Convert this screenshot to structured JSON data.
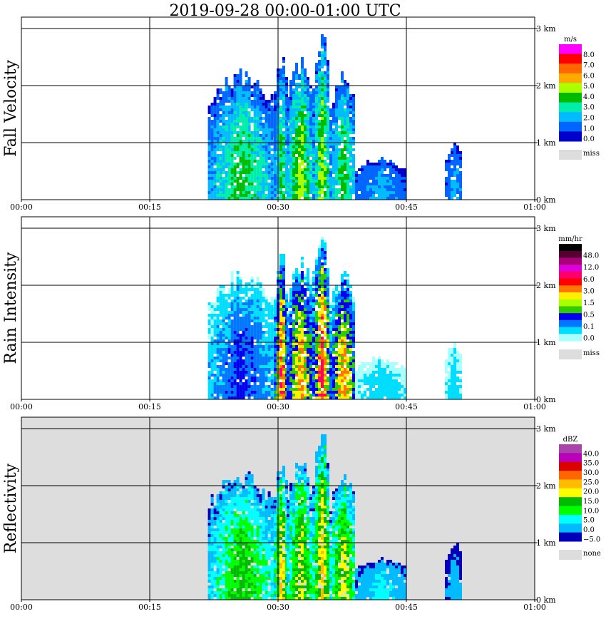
{
  "title": "2019-09-28   00:00-01:00 UTC",
  "x_ticks": [
    "00:00",
    "00:15",
    "00:30",
    "00:45",
    "01:00"
  ],
  "height_ticks": [
    "0 km",
    "1 km",
    "2 km",
    "3 km"
  ],
  "panels": [
    {
      "id": "fall-velocity",
      "ylabel": "Fall Velocity",
      "background": "#ffffff",
      "colorbar": {
        "unit": "m/s",
        "labels": [
          "8.0",
          "7.0",
          "6.0",
          "5.0",
          "4.0",
          "3.0",
          "2.0",
          "1.0",
          "0.0"
        ],
        "colors": [
          "#ff00ff",
          "#ff0000",
          "#ff6600",
          "#ffaa00",
          "#aaff00",
          "#00bb00",
          "#00eeaa",
          "#00bbff",
          "#0066ff",
          "#0000cc"
        ],
        "missing_label": "miss",
        "missing_color": "#dddddd"
      },
      "palette": [
        "#0000cc",
        "#0066ff",
        "#00bbff",
        "#00eeaa",
        "#00bb00",
        "#aaff00",
        "#ffaa00",
        "#ff00ff"
      ]
    },
    {
      "id": "rain-intensity",
      "ylabel": "Rain Intensity",
      "background": "#ffffff",
      "colorbar": {
        "unit": "mm/hr",
        "labels": [
          "48.0",
          "12.0",
          "6.0",
          "3.0",
          "1.5",
          "0.5",
          "0.1",
          "0.0"
        ],
        "colors": [
          "#000000",
          "#550033",
          "#aa0077",
          "#dd00dd",
          "#ff0066",
          "#ff0000",
          "#ff7700",
          "#ffee00",
          "#aaff00",
          "#33cc00",
          "#0000ee",
          "#0077ff",
          "#00ddff",
          "#aaffff"
        ],
        "missing_label": "miss",
        "missing_color": "#dddddd"
      },
      "palette": [
        "#aaffff",
        "#00ddff",
        "#0077ff",
        "#0000ee",
        "#33cc00",
        "#ffee00",
        "#ff7700",
        "#ff0066",
        "#ff0000"
      ]
    },
    {
      "id": "reflectivity",
      "ylabel": "Reflectivity",
      "background": "#dddddd",
      "colorbar": {
        "unit": "dBZ",
        "labels": [
          "40.0",
          "35.0",
          "30.0",
          "25.0",
          "20.0",
          "15.0",
          "10.0",
          "5.0",
          "0.0",
          "−5.0"
        ],
        "colors": [
          "#aa44aa",
          "#bb00bb",
          "#dd0000",
          "#ff6600",
          "#ffbb00",
          "#ffff00",
          "#00bb00",
          "#00ff00",
          "#00ffff",
          "#00bbff",
          "#0000bb"
        ],
        "missing_label": "none",
        "missing_color": "#dddddd"
      },
      "palette": [
        "#0000bb",
        "#00bbff",
        "#00ffff",
        "#00ff00",
        "#00bb00",
        "#ffff00",
        "#ffbb00",
        "#ff6600",
        "#dd0000"
      ]
    }
  ],
  "chart_data": [
    {
      "type": "heatmap",
      "title": "2019-09-28   00:00-01:00 UTC",
      "ylabel": "Fall Velocity",
      "unit": "m/s",
      "xlim": [
        "00:00",
        "01:00"
      ],
      "ylim_km": [
        0,
        3.2
      ],
      "x_ticks": [
        "00:00",
        "00:15",
        "00:30",
        "00:45",
        "01:00"
      ],
      "y_ticks": [
        "0 km",
        "1 km",
        "2 km",
        "3 km"
      ],
      "color_levels": [
        0.0,
        1.0,
        2.0,
        3.0,
        4.0,
        5.0,
        6.0,
        7.0,
        8.0
      ],
      "echo_columns": [
        {
          "start_min": 21.8,
          "end_min": 29.5,
          "top_km": 2.2,
          "max_value": 5.5
        },
        {
          "start_min": 29.5,
          "end_min": 31.0,
          "top_km": 2.5,
          "max_value": 5.0
        },
        {
          "start_min": 31.0,
          "end_min": 34.0,
          "top_km": 2.4,
          "max_value": 6.0
        },
        {
          "start_min": 34.0,
          "end_min": 36.0,
          "top_km": 2.85,
          "max_value": 6.0
        },
        {
          "start_min": 36.0,
          "end_min": 39.0,
          "top_km": 2.2,
          "max_value": 5.0
        },
        {
          "start_min": 39.0,
          "end_min": 44.8,
          "top_km": 0.7,
          "max_value": 2.0
        },
        {
          "start_min": 49.5,
          "end_min": 51.5,
          "top_km": 0.95,
          "max_value": 2.5
        }
      ]
    },
    {
      "type": "heatmap",
      "ylabel": "Rain Intensity",
      "unit": "mm/hr",
      "xlim": [
        "00:00",
        "01:00"
      ],
      "ylim_km": [
        0,
        3.2
      ],
      "x_ticks": [
        "00:00",
        "00:15",
        "00:30",
        "00:45",
        "01:00"
      ],
      "y_ticks": [
        "0 km",
        "1 km",
        "2 km",
        "3 km"
      ],
      "color_levels": [
        0.0,
        0.1,
        0.5,
        1.5,
        3.0,
        6.0,
        12.0,
        48.0
      ],
      "echo_columns": [
        {
          "start_min": 21.8,
          "end_min": 29.5,
          "top_km": 2.2,
          "max_value": 1.5
        },
        {
          "start_min": 29.5,
          "end_min": 31.0,
          "top_km": 2.5,
          "max_value": 12.0
        },
        {
          "start_min": 31.0,
          "end_min": 34.0,
          "top_km": 2.4,
          "max_value": 6.0
        },
        {
          "start_min": 34.0,
          "end_min": 36.0,
          "top_km": 2.85,
          "max_value": 12.0
        },
        {
          "start_min": 36.0,
          "end_min": 39.0,
          "top_km": 2.2,
          "max_value": 6.0
        },
        {
          "start_min": 39.0,
          "end_min": 44.8,
          "top_km": 0.7,
          "max_value": 0.1
        },
        {
          "start_min": 49.5,
          "end_min": 51.5,
          "top_km": 0.95,
          "max_value": 0.1
        }
      ]
    },
    {
      "type": "heatmap",
      "ylabel": "Reflectivity",
      "unit": "dBZ",
      "xlim": [
        "00:00",
        "01:00"
      ],
      "ylim_km": [
        0,
        3.2
      ],
      "x_ticks": [
        "00:00",
        "00:15",
        "00:30",
        "00:45",
        "01:00"
      ],
      "y_ticks": [
        "0 km",
        "1 km",
        "2 km",
        "3 km"
      ],
      "color_levels": [
        -5.0,
        0.0,
        5.0,
        10.0,
        15.0,
        20.0,
        25.0,
        30.0,
        35.0,
        40.0
      ],
      "echo_columns": [
        {
          "start_min": 21.8,
          "end_min": 29.5,
          "top_km": 2.2,
          "max_value": 20.0
        },
        {
          "start_min": 29.5,
          "end_min": 31.0,
          "top_km": 2.5,
          "max_value": 30.0
        },
        {
          "start_min": 31.0,
          "end_min": 34.0,
          "top_km": 2.4,
          "max_value": 25.0
        },
        {
          "start_min": 34.0,
          "end_min": 36.0,
          "top_km": 2.85,
          "max_value": 30.0
        },
        {
          "start_min": 36.0,
          "end_min": 39.0,
          "top_km": 2.2,
          "max_value": 25.0
        },
        {
          "start_min": 39.0,
          "end_min": 44.8,
          "top_km": 0.7,
          "max_value": 5.0
        },
        {
          "start_min": 49.5,
          "end_min": 51.5,
          "top_km": 0.95,
          "max_value": 0.0
        }
      ]
    }
  ]
}
